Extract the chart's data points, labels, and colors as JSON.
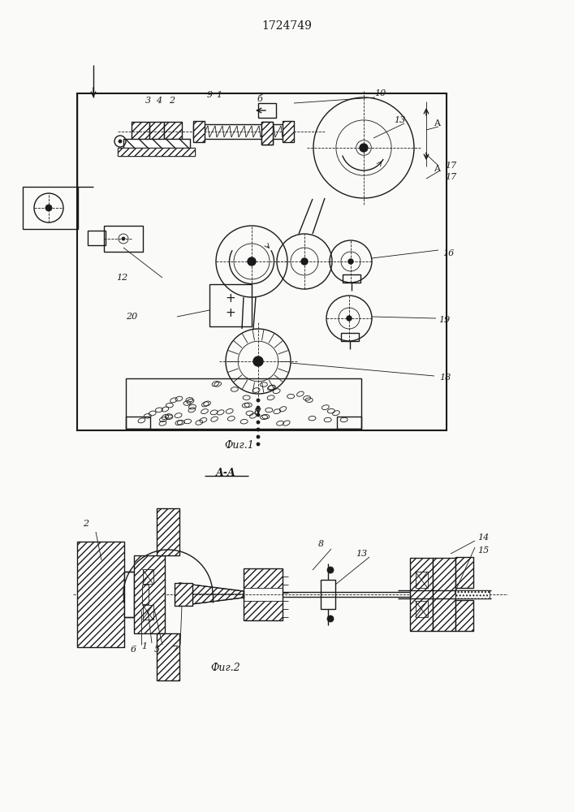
{
  "title": "1724749",
  "fig1_label": "Фиг.1",
  "fig2_label": "Фиг.2",
  "section_label": "A-A",
  "bg_color": "#f5f5f0",
  "line_color": "#1a1a1a",
  "paper_color": "#fafaf8"
}
